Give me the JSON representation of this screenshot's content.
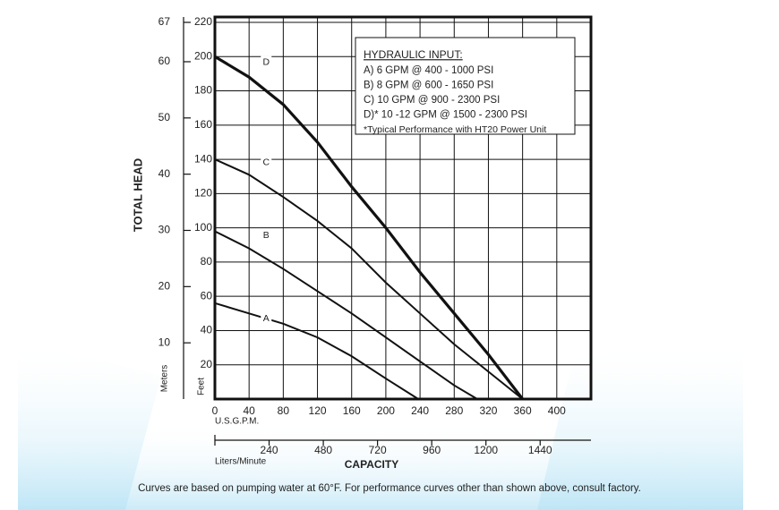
{
  "chart_data": {
    "type": "line",
    "y_label": "TOTAL HEAD",
    "y_unit_label": "Feet",
    "y2_unit_label": "Meters",
    "x_unit_label": "U.S.G.P.M.",
    "x2_unit_label": "Liters/Minute",
    "x_label": "CAPACITY",
    "xlim": [
      0,
      440
    ],
    "xticks": [
      0,
      40,
      80,
      120,
      160,
      200,
      240,
      280,
      320,
      360,
      400
    ],
    "ylim": [
      0,
      220
    ],
    "yticks": [
      0,
      20,
      40,
      60,
      80,
      100,
      120,
      140,
      160,
      180,
      200,
      220
    ],
    "y2lim": [
      0,
      67
    ],
    "y2ticks": [
      10,
      20,
      30,
      40,
      50,
      60,
      67
    ],
    "x2lim": [
      0,
      1665
    ],
    "x2ticks": [
      240,
      480,
      720,
      960,
      1200,
      1440
    ],
    "grid": true,
    "series": [
      {
        "name": "A",
        "color": "#111111",
        "x": [
          0,
          40,
          80,
          120,
          160,
          200,
          238
        ],
        "values": [
          56,
          50,
          44,
          36,
          25,
          12,
          0
        ]
      },
      {
        "name": "B",
        "color": "#111111",
        "x": [
          0,
          40,
          80,
          120,
          160,
          200,
          240,
          280,
          307
        ],
        "values": [
          98,
          88,
          76,
          63,
          50,
          36,
          22,
          8,
          0
        ]
      },
      {
        "name": "C",
        "color": "#111111",
        "x": [
          0,
          40,
          80,
          120,
          160,
          200,
          240,
          280,
          320,
          360
        ],
        "values": [
          140,
          131,
          118,
          104,
          88,
          68,
          50,
          32,
          16,
          0
        ]
      },
      {
        "name": "D",
        "color": "#111111",
        "x": [
          0,
          40,
          80,
          120,
          160,
          200,
          240,
          280,
          320,
          360
        ],
        "values": [
          200,
          188,
          172,
          150,
          124,
          100,
          74,
          50,
          26,
          0
        ]
      }
    ],
    "legend_title": "HYDRAULIC INPUT:",
    "legend_lines": [
      "A) 6 GPM @ 400 - 1000 PSI",
      "B) 8 GPM @ 600 - 1650 PSI",
      "C) 10 GPM @ 900 - 2300 PSI",
      "D)* 10 -12 GPM @ 1500 - 2300 PSI",
      "*Typical Performance with HT20 Power Unit"
    ],
    "caption": "Curves are based on pumping water at 60°F. For performance curves other than shown above, consult factory."
  }
}
